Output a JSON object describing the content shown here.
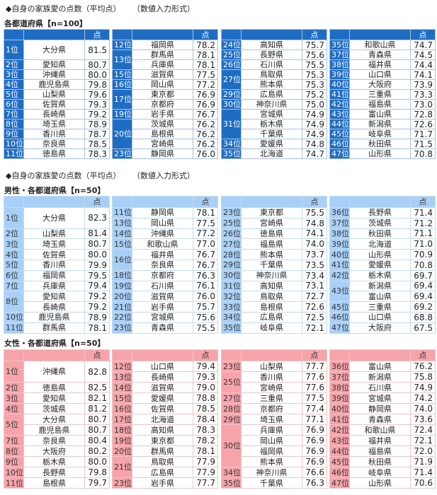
{
  "score_header": "点",
  "colors": {
    "overall": "#1f6dc3",
    "male": "#a8d0f7",
    "female": "#f6a4aa"
  },
  "sections": [
    {
      "title": "◆自身の家族愛の点数（平均点）",
      "mode": "（数値入力形式）",
      "subtitle": "各都道府県【n=100】",
      "tables": [
        [
          {
            "rank": "1位",
            "span": 1,
            "name": "大分県",
            "score": "81.5"
          },
          {
            "rank": "2位",
            "span": 1,
            "name": "愛知県",
            "score": "80.7"
          },
          {
            "rank": "3位",
            "span": 1,
            "name": "沖縄県",
            "score": "80.0"
          },
          {
            "rank": "4位",
            "span": 1,
            "name": "鹿児島県",
            "score": "79.8"
          },
          {
            "rank": "5位",
            "span": 1,
            "name": "山梨県",
            "score": "79.6"
          },
          {
            "rank": "6位",
            "span": 1,
            "name": "佐賀県",
            "score": "79.3"
          },
          {
            "rank": "7位",
            "span": 1,
            "name": "長崎県",
            "score": "79.2"
          },
          {
            "rank": "8位",
            "span": 1,
            "name": "埼玉県",
            "score": "78.9"
          },
          {
            "rank": "9位",
            "span": 1,
            "name": "香川県",
            "score": "78.7"
          },
          {
            "rank": "10位",
            "span": 1,
            "name": "奈良県",
            "score": "78.5"
          },
          {
            "rank": "11位",
            "span": 1,
            "name": "徳島県",
            "score": "78.3"
          }
        ],
        [
          {
            "rank": "12位",
            "span": 1,
            "name": "福岡県",
            "score": "78.2"
          },
          {
            "rank": "13位",
            "span": 2,
            "name": "群馬県",
            "score": "78.1"
          },
          {
            "name": "兵庫県",
            "score": "78.1"
          },
          {
            "rank": "15位",
            "span": 1,
            "name": "滋賀県",
            "score": "77.5"
          },
          {
            "rank": "16位",
            "span": 1,
            "name": "岡山県",
            "score": "77.2"
          },
          {
            "rank": "17位",
            "span": 2,
            "name": "東京都",
            "score": "76.9"
          },
          {
            "name": "京都府",
            "score": "76.9"
          },
          {
            "rank": "19位",
            "span": 1,
            "name": "岩手県",
            "score": "76.7"
          },
          {
            "rank": "20位",
            "span": 3,
            "name": "茨城県",
            "score": "76.2"
          },
          {
            "name": "島根県",
            "score": "76.2"
          },
          {
            "name": "宮崎県",
            "score": "76.2"
          },
          {
            "rank": "23位",
            "span": 1,
            "name": "静岡県",
            "score": "76.0"
          }
        ],
        [
          {
            "rank": "24位",
            "span": 1,
            "name": "高知県",
            "score": "75.7"
          },
          {
            "rank": "25位",
            "span": 1,
            "name": "長野県",
            "score": "75.6"
          },
          {
            "rank": "26位",
            "span": 1,
            "name": "石川県",
            "score": "75.5"
          },
          {
            "rank": "27位",
            "span": 2,
            "name": "鳥取県",
            "score": "75.3"
          },
          {
            "name": "熊本県",
            "score": "75.3"
          },
          {
            "rank": "29位",
            "span": 1,
            "name": "広島県",
            "score": "75.2"
          },
          {
            "rank": "30位",
            "span": 1,
            "name": "神奈川県",
            "score": "75.0"
          },
          {
            "rank": "31位",
            "span": 3,
            "name": "宮城県",
            "score": "74.9"
          },
          {
            "name": "栃木県",
            "score": "74.9"
          },
          {
            "name": "千葉県",
            "score": "74.9"
          },
          {
            "rank": "34位",
            "span": 1,
            "name": "愛媛県",
            "score": "74.8"
          },
          {
            "rank": "35位",
            "span": 1,
            "name": "北海道",
            "score": "74.7"
          }
        ],
        [
          {
            "rank": "35位",
            "span": 1,
            "name": "和歌山県",
            "score": "74.7"
          },
          {
            "rank": "37位",
            "span": 1,
            "name": "青森県",
            "score": "74.5"
          },
          {
            "rank": "38位",
            "span": 1,
            "name": "福井県",
            "score": "74.4"
          },
          {
            "rank": "39位",
            "span": 1,
            "name": "山口県",
            "score": "74.1"
          },
          {
            "rank": "40位",
            "span": 1,
            "name": "大阪府",
            "score": "73.9"
          },
          {
            "rank": "41位",
            "span": 1,
            "name": "三重県",
            "score": "73.3"
          },
          {
            "rank": "42位",
            "span": 1,
            "name": "福島県",
            "score": "73.0"
          },
          {
            "rank": "43位",
            "span": 1,
            "name": "富山県",
            "score": "72.8"
          },
          {
            "rank": "44位",
            "span": 1,
            "name": "新潟県",
            "score": "72.6"
          },
          {
            "rank": "45位",
            "span": 1,
            "name": "岐阜県",
            "score": "71.7"
          },
          {
            "rank": "46位",
            "span": 1,
            "name": "秋田県",
            "score": "71.5"
          },
          {
            "rank": "47位",
            "span": 1,
            "name": "山形県",
            "score": "70.8"
          }
        ]
      ]
    },
    {
      "title": "◆自身の家族愛の点数（平均点）",
      "mode": "（数値入力形式）",
      "subtitle": "男性・各都道府県【n=50】",
      "tables": [
        [
          {
            "rank": "1位",
            "span": 1,
            "name": "大分県",
            "score": "82.3"
          },
          {
            "rank": "2位",
            "span": 1,
            "name": "山梨県",
            "score": "81.4"
          },
          {
            "rank": "3位",
            "span": 1,
            "name": "埼玉県",
            "score": "80.7"
          },
          {
            "rank": "4位",
            "span": 1,
            "name": "佐賀県",
            "score": "80.0"
          },
          {
            "rank": "5位",
            "span": 1,
            "name": "香川県",
            "score": "79.9"
          },
          {
            "rank": "6位",
            "span": 1,
            "name": "福岡県",
            "score": "79.5"
          },
          {
            "rank": "7位",
            "span": 1,
            "name": "兵庫県",
            "score": "79.4"
          },
          {
            "rank": "8位",
            "span": 2,
            "name": "愛知県",
            "score": "79.2"
          },
          {
            "name": "長崎県",
            "score": "79.2"
          },
          {
            "rank": "10位",
            "span": 1,
            "name": "鹿児島県",
            "score": "78.9"
          },
          {
            "rank": "11位",
            "span": 1,
            "name": "群馬県",
            "score": "78.1"
          }
        ],
        [
          {
            "rank": "11位",
            "span": 1,
            "name": "静岡県",
            "score": "78.1"
          },
          {
            "rank": "13位",
            "span": 1,
            "name": "岡山県",
            "score": "77.5"
          },
          {
            "rank": "14位",
            "span": 1,
            "name": "沖縄県",
            "score": "77.2"
          },
          {
            "rank": "15位",
            "span": 1,
            "name": "和歌山県",
            "score": "77.0"
          },
          {
            "rank": "16位",
            "span": 2,
            "name": "福井県",
            "score": "76.7"
          },
          {
            "name": "奈良県",
            "score": "76.7"
          },
          {
            "rank": "18位",
            "span": 1,
            "name": "京都府",
            "score": "76.3"
          },
          {
            "rank": "19位",
            "span": 1,
            "name": "石川県",
            "score": "76.1"
          },
          {
            "rank": "20位",
            "span": 1,
            "name": "滋賀県",
            "score": "76.0"
          },
          {
            "rank": "21位",
            "span": 1,
            "name": "岩手県",
            "score": "75.7"
          },
          {
            "rank": "22位",
            "span": 1,
            "name": "宮城県",
            "score": "75.6"
          },
          {
            "rank": "23位",
            "span": 1,
            "name": "青森県",
            "score": "75.5"
          }
        ],
        [
          {
            "rank": "23位",
            "span": 1,
            "name": "東京都",
            "score": "75.5"
          },
          {
            "rank": "25位",
            "span": 1,
            "name": "宮崎県",
            "score": "74.8"
          },
          {
            "rank": "26位",
            "span": 1,
            "name": "徳島県",
            "score": "74.1"
          },
          {
            "rank": "27位",
            "span": 1,
            "name": "福島県",
            "score": "74.0"
          },
          {
            "rank": "28位",
            "span": 1,
            "name": "熊本県",
            "score": "73.7"
          },
          {
            "rank": "29位",
            "span": 1,
            "name": "千葉県",
            "score": "73.5"
          },
          {
            "rank": "30位",
            "span": 1,
            "name": "神奈川県",
            "score": "73.4"
          },
          {
            "rank": "31位",
            "span": 1,
            "name": "高知県",
            "score": "73.1"
          },
          {
            "rank": "32位",
            "span": 1,
            "name": "鳥取県",
            "score": "72.7"
          },
          {
            "rank": "33位",
            "span": 1,
            "name": "島根県",
            "score": "72.6"
          },
          {
            "rank": "34位",
            "span": 1,
            "name": "広島県",
            "score": "72.5"
          },
          {
            "rank": "35位",
            "span": 1,
            "name": "岐阜県",
            "score": "72.1"
          }
        ],
        [
          {
            "rank": "36位",
            "span": 1,
            "name": "長野県",
            "score": "71.4"
          },
          {
            "rank": "37位",
            "span": 1,
            "name": "茨城県",
            "score": "71.2"
          },
          {
            "rank": "38位",
            "span": 1,
            "name": "秋田県",
            "score": "71.1"
          },
          {
            "rank": "39位",
            "span": 1,
            "name": "北海道",
            "score": "71.0"
          },
          {
            "rank": "40位",
            "span": 1,
            "name": "山形県",
            "score": "70.9"
          },
          {
            "rank": "41位",
            "span": 1,
            "name": "愛媛県",
            "score": "70.8"
          },
          {
            "rank": "42位",
            "span": 1,
            "name": "栃木県",
            "score": "69.7"
          },
          {
            "rank": "43位",
            "span": 2,
            "name": "新潟県",
            "score": "69.4"
          },
          {
            "name": "富山県",
            "score": "69.4"
          },
          {
            "rank": "45位",
            "span": 1,
            "name": "三重県",
            "score": "69.2"
          },
          {
            "rank": "46位",
            "span": 1,
            "name": "山口県",
            "score": "68.8"
          },
          {
            "rank": "47位",
            "span": 1,
            "name": "大阪府",
            "score": "67.5"
          }
        ]
      ]
    },
    {
      "subtitle": "女性・各都道府県【n=50】",
      "tables": [
        [
          {
            "rank": "1位",
            "span": 1,
            "name": "沖縄県",
            "score": "82.8"
          },
          {
            "rank": "2位",
            "span": 1,
            "name": "徳島県",
            "score": "82.5"
          },
          {
            "rank": "3位",
            "span": 1,
            "name": "愛知県",
            "score": "82.1"
          },
          {
            "rank": "4位",
            "span": 1,
            "name": "茨城県",
            "score": "81.2"
          },
          {
            "rank": "5位",
            "span": 2,
            "name": "大分県",
            "score": "80.7"
          },
          {
            "name": "鹿児島県",
            "score": "80.7"
          },
          {
            "rank": "7位",
            "span": 1,
            "name": "奈良県",
            "score": "80.4"
          },
          {
            "rank": "8位",
            "span": 1,
            "name": "大阪府",
            "score": "80.2"
          },
          {
            "rank": "9位",
            "span": 1,
            "name": "栃木県",
            "score": "80.0"
          },
          {
            "rank": "10位",
            "span": 1,
            "name": "長野県",
            "score": "79.8"
          },
          {
            "rank": "11位",
            "span": 1,
            "name": "島根県",
            "score": "79.7"
          }
        ],
        [
          {
            "rank": "12位",
            "span": 1,
            "name": "山口県",
            "score": "79.4"
          },
          {
            "rank": "13位",
            "span": 1,
            "name": "長崎県",
            "score": "79.3"
          },
          {
            "rank": "14位",
            "span": 1,
            "name": "滋賀県",
            "score": "79.0"
          },
          {
            "rank": "15位",
            "span": 1,
            "name": "愛媛県",
            "score": "78.8"
          },
          {
            "rank": "16位",
            "span": 1,
            "name": "佐賀県",
            "score": "78.5"
          },
          {
            "rank": "17位",
            "span": 1,
            "name": "北海道",
            "score": "78.4"
          },
          {
            "rank": "18位",
            "span": 1,
            "name": "高知県",
            "score": "78.3"
          },
          {
            "rank": "19位",
            "span": 1,
            "name": "東京都",
            "score": "78.2"
          },
          {
            "rank": "20位",
            "span": 1,
            "name": "群馬県",
            "score": "78.1"
          },
          {
            "rank": "21位",
            "span": 2,
            "name": "鳥取県",
            "score": "77.9"
          },
          {
            "name": "広島県",
            "score": "77.9"
          },
          {
            "rank": "23位",
            "span": 1,
            "name": "岩手県",
            "score": "77.7"
          }
        ],
        [
          {
            "rank": "23位",
            "span": 1,
            "name": "山梨県",
            "score": "77.7"
          },
          {
            "rank": "25位",
            "span": 2,
            "name": "香川県",
            "score": "77.6"
          },
          {
            "name": "宮崎県",
            "score": "77.6"
          },
          {
            "rank": "27位",
            "span": 1,
            "name": "三重県",
            "score": "77.5"
          },
          {
            "rank": "28位",
            "span": 1,
            "name": "京都府",
            "score": "77.4"
          },
          {
            "rank": "29位",
            "span": 1,
            "name": "埼玉県",
            "score": "77.1"
          },
          {
            "rank": "30位",
            "span": 4,
            "name": "兵庫県",
            "score": "76.9"
          },
          {
            "name": "岡山県",
            "score": "76.9"
          },
          {
            "name": "福岡県",
            "score": "76.9"
          },
          {
            "name": "熊本県",
            "score": "76.9"
          },
          {
            "rank": "34位",
            "span": 1,
            "name": "神奈川県",
            "score": "76.6"
          },
          {
            "rank": "35位",
            "span": 1,
            "name": "千葉県",
            "score": "76.3"
          }
        ],
        [
          {
            "rank": "36位",
            "span": 1,
            "name": "富山県",
            "score": "76.2"
          },
          {
            "rank": "37位",
            "span": 1,
            "name": "新潟県",
            "score": "75.8"
          },
          {
            "rank": "38位",
            "span": 1,
            "name": "石川県",
            "score": "74.9"
          },
          {
            "rank": "39位",
            "span": 1,
            "name": "宮城県",
            "score": "74.2"
          },
          {
            "rank": "40位",
            "span": 1,
            "name": "静岡県",
            "score": "74.0"
          },
          {
            "rank": "41位",
            "span": 1,
            "name": "青森県",
            "score": "73.6"
          },
          {
            "rank": "42位",
            "span": 1,
            "name": "和歌山県",
            "score": "72.4"
          },
          {
            "rank": "43位",
            "span": 1,
            "name": "福井県",
            "score": "72.1"
          },
          {
            "rank": "44位",
            "span": 1,
            "name": "福島県",
            "score": "72.0"
          },
          {
            "rank": "45位",
            "span": 1,
            "name": "秋田県",
            "score": "71.9"
          },
          {
            "rank": "46位",
            "span": 1,
            "name": "岐阜県",
            "score": "71.4"
          },
          {
            "rank": "47位",
            "span": 1,
            "name": "山形県",
            "score": "70.6"
          }
        ]
      ]
    }
  ]
}
